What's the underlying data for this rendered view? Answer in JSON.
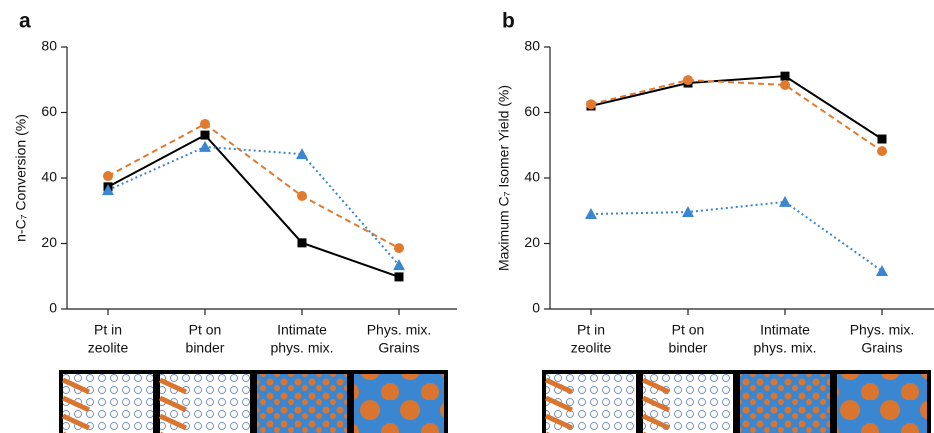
{
  "chart_data": [
    {
      "type": "line",
      "title": "a",
      "ylabel": "n-C₇ Conversion (%)",
      "categories": [
        [
          "Pt in",
          "zeolite"
        ],
        [
          "Pt on",
          "binder"
        ],
        [
          "Intimate",
          "phys. mix."
        ],
        [
          "Phys. mix.",
          "Grains"
        ]
      ],
      "ylim": [
        0,
        80
      ],
      "yticks": [
        0,
        20,
        40,
        60,
        80
      ],
      "grid": false,
      "series": [
        {
          "color": "#000000",
          "marker": "square",
          "linestyle": "solid",
          "values": [
            37.3,
            53.1,
            20.2,
            9.8
          ]
        },
        {
          "color": "#e07a2e",
          "marker": "circle",
          "linestyle": "dashed",
          "values": [
            40.6,
            56.5,
            34.5,
            18.6
          ]
        },
        {
          "color": "#3a86d0",
          "marker": "triangle",
          "linestyle": "dotted",
          "values": [
            36.3,
            49.5,
            47.3,
            13.4
          ]
        }
      ]
    },
    {
      "type": "line",
      "title": "b",
      "ylabel": "Maximum C₇ Isomer Yield (%)",
      "categories": [
        [
          "Pt in",
          "zeolite"
        ],
        [
          "Pt on",
          "binder"
        ],
        [
          "Intimate",
          "phys. mix."
        ],
        [
          "Phys. mix.",
          "Grains"
        ]
      ],
      "ylim": [
        0,
        80
      ],
      "yticks": [
        0,
        20,
        40,
        60,
        80
      ],
      "grid": false,
      "series": [
        {
          "color": "#000000",
          "marker": "square",
          "linestyle": "solid",
          "values": [
            62,
            69,
            71.1,
            51.9
          ]
        },
        {
          "color": "#e07a2e",
          "marker": "circle",
          "linestyle": "dashed",
          "values": [
            62.5,
            69.9,
            68.4,
            48.2
          ]
        },
        {
          "color": "#3a86d0",
          "marker": "triangle",
          "linestyle": "dotted",
          "values": [
            29,
            29.6,
            32.7,
            11.6
          ]
        }
      ]
    }
  ]
}
